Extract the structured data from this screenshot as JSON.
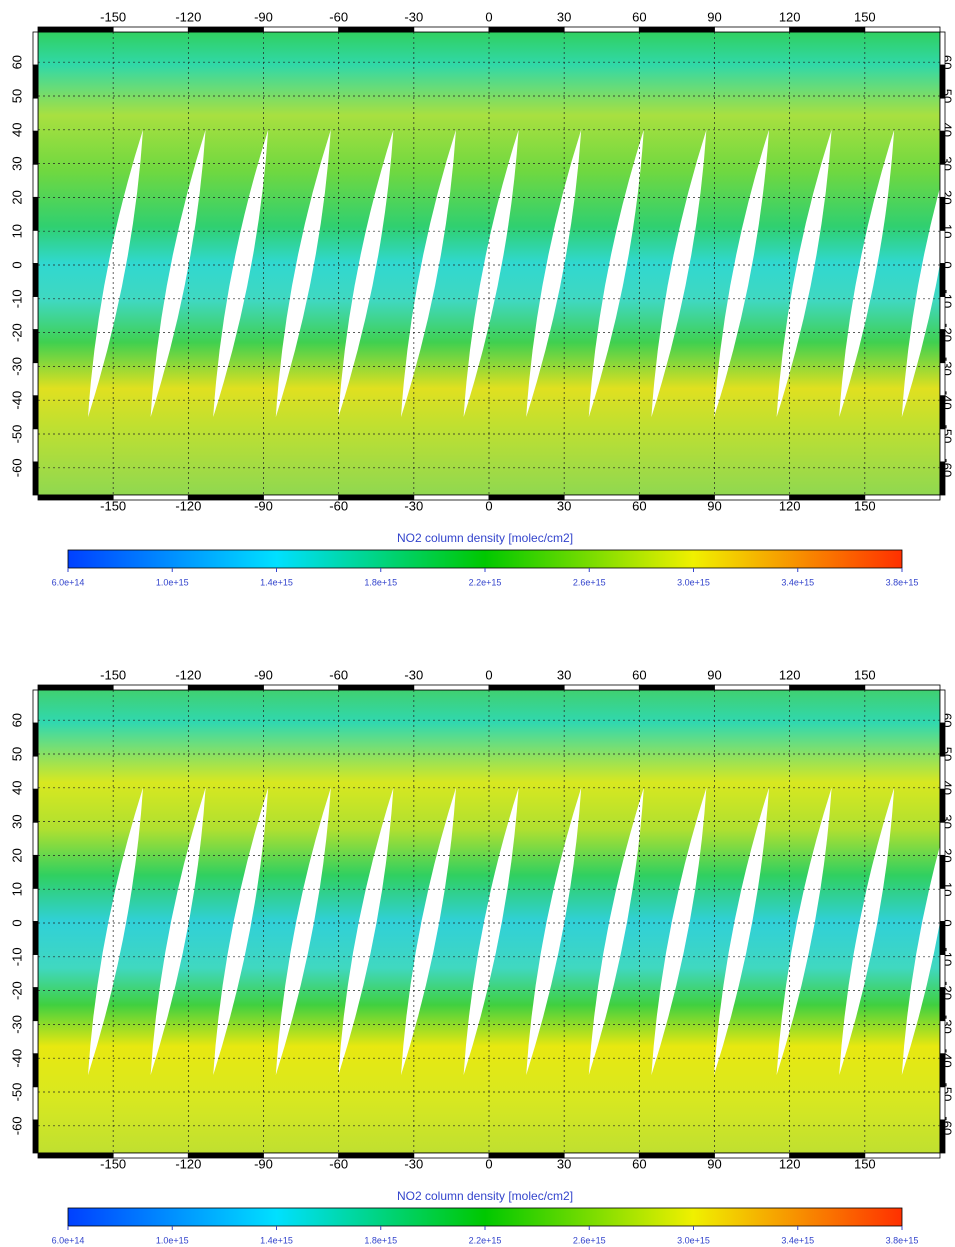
{
  "maps": [
    {
      "xticks": [
        -150,
        -120,
        -90,
        -60,
        -30,
        0,
        30,
        60,
        90,
        120,
        150
      ],
      "yticks": [
        -60,
        -50,
        -40,
        -30,
        -20,
        -10,
        0,
        10,
        20,
        30,
        40,
        50,
        60
      ],
      "colorbar": {
        "label": "NO2 column density [molec/cm2]",
        "ticks": [
          {
            "value": 600000000000000.0,
            "label": "6.0e+14"
          },
          {
            "value": 1000000000000000.0,
            "label": "1.0e+15"
          },
          {
            "value": 1400000000000000.0,
            "label": "1.4e+15"
          },
          {
            "value": 1800000000000000.0,
            "label": "1.8e+15"
          },
          {
            "value": 2200000000000000.0,
            "label": "2.2e+15"
          },
          {
            "value": 2600000000000000.0,
            "label": "2.6e+15"
          },
          {
            "value": 3000000000000000.0,
            "label": "3.0e+15"
          },
          {
            "value": 3400000000000000.0,
            "label": "3.4e+15"
          },
          {
            "value": 3800000000000000.0,
            "label": "3.8e+15"
          }
        ],
        "clim": [
          600000000000000.0,
          3800000000000000.0
        ]
      }
    },
    {
      "xticks": [
        -150,
        -120,
        -90,
        -60,
        -30,
        0,
        30,
        60,
        90,
        120,
        150
      ],
      "yticks": [
        -60,
        -50,
        -40,
        -30,
        -20,
        -10,
        0,
        10,
        20,
        30,
        40,
        50,
        60
      ],
      "colorbar": {
        "label": "NO2 column density [molec/cm2]",
        "ticks": [
          {
            "value": 600000000000000.0,
            "label": "6.0e+14"
          },
          {
            "value": 1000000000000000.0,
            "label": "1.0e+15"
          },
          {
            "value": 1400000000000000.0,
            "label": "1.4e+15"
          },
          {
            "value": 1800000000000000.0,
            "label": "1.8e+15"
          },
          {
            "value": 2200000000000000.0,
            "label": "2.2e+15"
          },
          {
            "value": 2600000000000000.0,
            "label": "2.6e+15"
          },
          {
            "value": 3000000000000000.0,
            "label": "3.0e+15"
          },
          {
            "value": 3400000000000000.0,
            "label": "3.4e+15"
          },
          {
            "value": 3800000000000000.0,
            "label": "3.8e+15"
          }
        ],
        "clim": [
          600000000000000.0,
          3800000000000000.0
        ]
      }
    }
  ]
}
